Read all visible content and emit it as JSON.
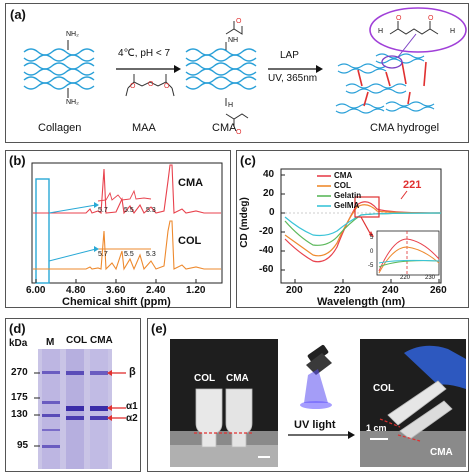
{
  "panel_a": {
    "label": "(a)",
    "nh2": "NH₂",
    "conditions_1": "4℃, pH < 7",
    "conditions_2_top": "LAP",
    "conditions_2_bottom": "UV, 365nm",
    "captions": [
      "Collagen",
      "MAA",
      "CMA",
      "CMA hydrogel"
    ],
    "nh": "NH",
    "h": "H"
  },
  "panel_b": {
    "label": "(b)",
    "samples": [
      "CMA",
      "COL"
    ],
    "inset_ticks": [
      "5.7",
      "5.5",
      "5.3"
    ],
    "x_ticks": [
      "6.00",
      "4.80",
      "3.60",
      "2.40",
      "1.20"
    ],
    "xlabel": "Chemical shift (ppm)",
    "colors": {
      "CMA": "#e8424d",
      "COL": "#ee8a2e",
      "box": "#29a9d6"
    }
  },
  "panel_c": {
    "label": "(c)",
    "legend": [
      "CMA",
      "COL",
      "Gelatin",
      "GelMA"
    ],
    "colors": [
      "#e8424d",
      "#ee8a2e",
      "#5bb85b",
      "#3bc4d8"
    ],
    "y_ticks": [
      "40",
      "20",
      "0",
      "-20",
      "-40",
      "-60"
    ],
    "x_ticks": [
      "200",
      "220",
      "240",
      "260"
    ],
    "ylabel": "CD (mdeg)",
    "xlabel": "Wavelength (nm)",
    "annotation": "221",
    "inset_y_ticks": [
      "5",
      "0",
      "-5"
    ],
    "inset_x_ticks": [
      "220",
      "230"
    ]
  },
  "panel_d": {
    "label": "(d)",
    "unit": "kDa",
    "lanes": [
      "M",
      "COL",
      "CMA"
    ],
    "markers": [
      "270",
      "175",
      "130",
      "95"
    ],
    "bands": [
      "β",
      "α1",
      "α2"
    ]
  },
  "panel_e": {
    "label": "(e)",
    "tube_labels_left": [
      "COL",
      "CMA"
    ],
    "uv_label": "UV light",
    "tube_labels_right": [
      "COL",
      "CMA"
    ],
    "scale": "1 cm"
  }
}
